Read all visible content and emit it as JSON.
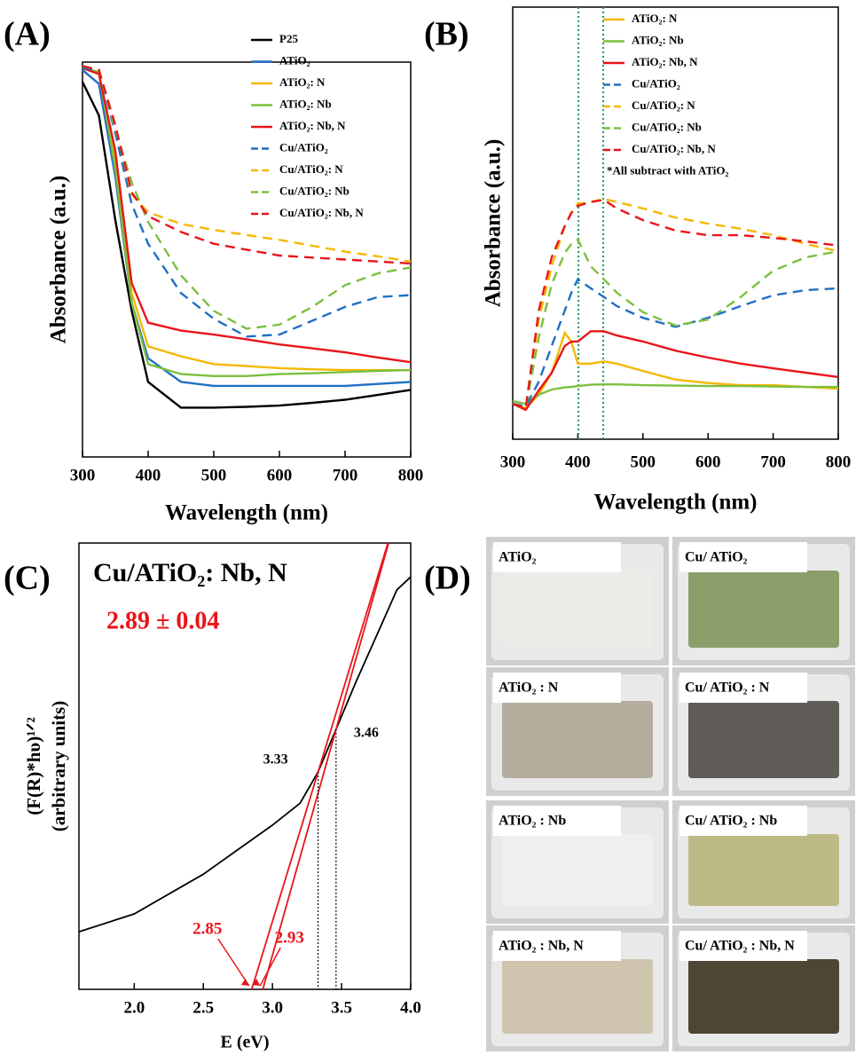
{
  "chart_data": [
    {
      "type": "line",
      "panel_label": "(A)",
      "xlabel": "Wavelength (nm)",
      "ylabel": "Absorbance (a.u.)",
      "x": [
        300,
        325,
        350,
        375,
        400,
        450,
        500,
        550,
        600,
        650,
        700,
        750,
        800
      ],
      "xlim": [
        300,
        800
      ],
      "xticks": [
        300,
        400,
        500,
        600,
        700,
        800
      ],
      "ylim": [
        0,
        1
      ],
      "series": [
        {
          "name": "P25",
          "color": "#000000",
          "dashed": false,
          "values": [
            0.95,
            0.865,
            0.6,
            0.37,
            0.19,
            0.125,
            0.125,
            0.127,
            0.13,
            0.137,
            0.145,
            0.157,
            0.17
          ]
        },
        {
          "name": "ATiO₂",
          "color": "#1f6fc5",
          "dashed": false,
          "values": [
            0.98,
            0.945,
            0.71,
            0.39,
            0.25,
            0.19,
            0.18,
            0.18,
            0.18,
            0.18,
            0.18,
            0.185,
            0.19
          ]
        },
        {
          "name": "ATiO₂: N",
          "color": "#f5b800",
          "dashed": false,
          "values": [
            0.985,
            0.97,
            0.75,
            0.415,
            0.28,
            0.255,
            0.235,
            0.23,
            0.225,
            0.222,
            0.22,
            0.22,
            0.22
          ]
        },
        {
          "name": "ATiO₂: Nb",
          "color": "#7cbf3f",
          "dashed": false,
          "values": [
            0.985,
            0.975,
            0.73,
            0.39,
            0.235,
            0.21,
            0.205,
            0.205,
            0.21,
            0.212,
            0.215,
            0.218,
            0.22
          ]
        },
        {
          "name": "ATiO₂: Nb, N",
          "color": "#e8151b",
          "dashed": false,
          "values": [
            0.985,
            0.97,
            0.775,
            0.44,
            0.34,
            0.32,
            0.31,
            0.298,
            0.285,
            0.275,
            0.265,
            0.252,
            0.24
          ]
        },
        {
          "name": "Cu/ATiO₂",
          "color": "#1f6fc5",
          "dashed": true,
          "values": [
            0.985,
            0.98,
            0.82,
            0.64,
            0.54,
            0.415,
            0.35,
            0.305,
            0.31,
            0.345,
            0.38,
            0.405,
            0.41
          ]
        },
        {
          "name": "Cu/ATiO₂: N",
          "color": "#f5b800",
          "dashed": true,
          "values": [
            0.99,
            0.98,
            0.84,
            0.665,
            0.62,
            0.59,
            0.575,
            0.562,
            0.55,
            0.535,
            0.52,
            0.508,
            0.495
          ]
        },
        {
          "name": "Cu/ATiO₂: Nb",
          "color": "#7cbf3f",
          "dashed": true,
          "values": [
            0.99,
            0.98,
            0.83,
            0.695,
            0.595,
            0.46,
            0.37,
            0.325,
            0.335,
            0.38,
            0.435,
            0.465,
            0.48
          ]
        },
        {
          "name": "Cu/ATiO₂: Nb, N",
          "color": "#e8151b",
          "dashed": true,
          "values": [
            0.99,
            0.98,
            0.84,
            0.67,
            0.61,
            0.57,
            0.54,
            0.525,
            0.51,
            0.505,
            0.5,
            0.495,
            0.49
          ]
        }
      ]
    },
    {
      "type": "line",
      "panel_label": "(B)",
      "xlabel": "Wavelength (nm)",
      "ylabel": "Absorbance (a.u.)",
      "legend_note": "*All subtract with ATiO₂",
      "x": [
        300,
        320,
        340,
        360,
        380,
        390,
        400,
        420,
        440,
        460,
        500,
        550,
        600,
        650,
        700,
        750,
        800
      ],
      "xlim": [
        300,
        800
      ],
      "xticks": [
        300,
        400,
        500,
        600,
        700,
        800
      ],
      "ylim": [
        0,
        1
      ],
      "reference_lines": [
        401,
        439
      ],
      "reference_color": "#1a9a5a",
      "series": [
        {
          "name": "ATiO₂: N",
          "color": "#f5b800",
          "dashed": false,
          "values": [
            0.082,
            0.072,
            0.103,
            0.154,
            0.246,
            0.226,
            0.175,
            0.175,
            0.18,
            0.175,
            0.158,
            0.138,
            0.13,
            0.125,
            0.125,
            0.121,
            0.117
          ]
        },
        {
          "name": "ATiO₂: Nb",
          "color": "#7cbf3f",
          "dashed": false,
          "values": [
            0.088,
            0.082,
            0.103,
            0.115,
            0.12,
            0.121,
            0.123,
            0.126,
            0.127,
            0.127,
            0.125,
            0.124,
            0.123,
            0.123,
            0.122,
            0.121,
            0.121
          ]
        },
        {
          "name": "ATiO₂: Nb, N",
          "color": "#e8151b",
          "dashed": false,
          "values": [
            0.082,
            0.068,
            0.113,
            0.154,
            0.216,
            0.226,
            0.226,
            0.25,
            0.25,
            0.24,
            0.226,
            0.205,
            0.189,
            0.175,
            0.164,
            0.154,
            0.144
          ]
        },
        {
          "name": "Cu/ATiO₂",
          "color": "#1f6fc5",
          "dashed": true,
          "values": [
            0.082,
            0.076,
            0.133,
            0.216,
            0.298,
            0.339,
            0.37,
            0.349,
            0.329,
            0.308,
            0.281,
            0.26,
            0.281,
            0.308,
            0.333,
            0.345,
            0.349
          ]
        },
        {
          "name": "Cu/ATiO₂: N",
          "color": "#f5b800",
          "dashed": true,
          "values": [
            0.082,
            0.072,
            0.277,
            0.4,
            0.493,
            0.524,
            0.545,
            0.549,
            0.556,
            0.549,
            0.534,
            0.513,
            0.499,
            0.487,
            0.472,
            0.452,
            0.435
          ]
        },
        {
          "name": "Cu/ATiO₂: Nb",
          "color": "#7cbf3f",
          "dashed": true,
          "values": [
            0.082,
            0.072,
            0.236,
            0.359,
            0.431,
            0.452,
            0.462,
            0.4,
            0.37,
            0.339,
            0.294,
            0.263,
            0.277,
            0.329,
            0.39,
            0.421,
            0.435
          ]
        },
        {
          "name": "Cu/ATiO₂: Nb, N",
          "color": "#e8151b",
          "dashed": true,
          "values": [
            0.082,
            0.072,
            0.298,
            0.421,
            0.493,
            0.524,
            0.54,
            0.549,
            0.554,
            0.534,
            0.507,
            0.483,
            0.472,
            0.472,
            0.466,
            0.458,
            0.448
          ]
        }
      ]
    },
    {
      "type": "tauc",
      "panel_label": "(C)",
      "title": "Cu/ATiO₂: Nb, N",
      "xlabel": "E (eV)",
      "ylabel": [
        "(F(R)*hυ)¹ᐟ²",
        "(arbitrary units)"
      ],
      "result": "2.89 ± 0.04",
      "result_color": "#e8151b",
      "xlim": [
        1.6,
        4.0
      ],
      "ylim": [
        0,
        1
      ],
      "xticks": [
        {
          "value": 2,
          "label": "2.0"
        },
        2.5,
        {
          "value": 3,
          "label": "3.0"
        },
        3.5,
        {
          "value": 4,
          "label": "4.0"
        }
      ],
      "series": [
        {
          "color": "#000000",
          "x": [
            1.6,
            2.0,
            2.5,
            3.0,
            3.2,
            3.33,
            3.46,
            3.6,
            3.8,
            3.9,
            4.0
          ],
          "values": [
            0.129,
            0.169,
            0.258,
            0.368,
            0.417,
            0.487,
            0.583,
            0.686,
            0.825,
            0.895,
            0.924
          ]
        },
        {
          "color": "#e8151b",
          "x": [
            2.85,
            3.33,
            3.835
          ],
          "values": [
            0,
            0.487,
            1
          ],
          "value_labels": [
            "2.85",
            "3.33",
            null
          ],
          "x_labels": [
            "2.85",
            "3.33",
            null
          ]
        },
        {
          "color": "#e8151b",
          "x": [
            2.93,
            3.46,
            3.84
          ],
          "values": [
            0,
            0.583,
            1
          ],
          "x_labels": [
            "2.93",
            "3.46",
            null
          ]
        }
      ]
    }
  ],
  "photos": {
    "panel_label": "(D)",
    "samples": [
      {
        "label": "ATiO₂",
        "color": "#ecebe8"
      },
      {
        "label": "Cu/ ATiO₂",
        "color": "#8b9e6a"
      },
      {
        "label": "ATiO₂ : N",
        "color": "#b4ad9e"
      },
      {
        "label": "Cu/ ATiO₂ : N",
        "color": "#605d58"
      },
      {
        "label": "ATiO₂ : Nb",
        "color": "#f0efed"
      },
      {
        "label": "Cu/ ATiO₂ : Nb",
        "color": "#bcbb86"
      },
      {
        "label": "ATiO₂ : Nb, N",
        "color": "#cfc4ad"
      },
      {
        "label": "Cu/ ATiO₂ : Nb, N",
        "color": "#4e4535"
      }
    ]
  }
}
